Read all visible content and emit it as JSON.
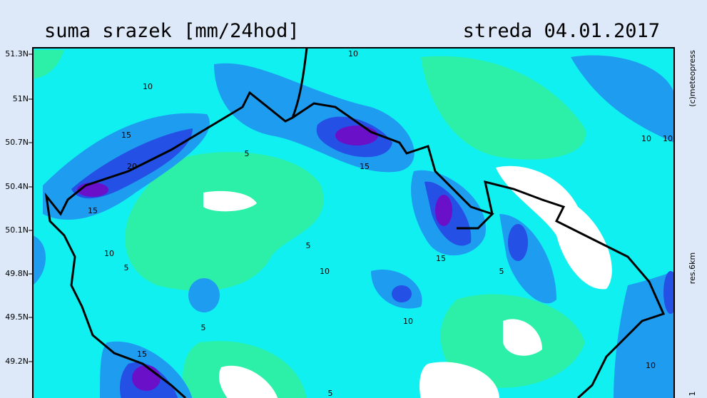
{
  "header": {
    "title": "suma srazek [mm/24hod]",
    "date": "streda 04.01.2017"
  },
  "credit": "(c)meteopress",
  "resolution": "res.6km",
  "corner_mark": "1",
  "latitude_labels": [
    "51.3N",
    "51N",
    "50.7N",
    "50.4N",
    "50.1N",
    "49.8N",
    "49.5N",
    "49.2N"
  ],
  "contour_labels": [
    10,
    10,
    15,
    20,
    15,
    5,
    10,
    5,
    5,
    10,
    15,
    15,
    5,
    10,
    5,
    15,
    10,
    10,
    10,
    5
  ]
}
